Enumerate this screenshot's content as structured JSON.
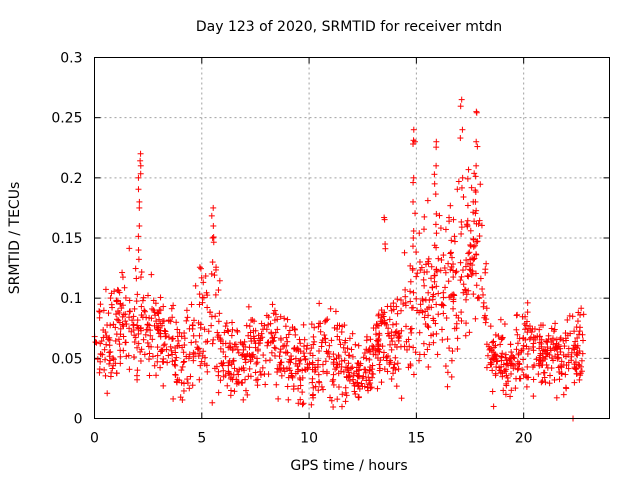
{
  "chart_data": {
    "type": "scatter",
    "title": "Day 123 of 2020, SRMTID for receiver mtdn",
    "xlabel": "GPS time / hours",
    "ylabel": "SRMTID / TECUs",
    "xlim": [
      0,
      24
    ],
    "ylim": [
      0,
      0.3
    ],
    "x_ticks": [
      "0",
      "5",
      "10",
      "15",
      "20"
    ],
    "y_ticks": [
      "0",
      "0.05",
      "0.1",
      "0.15",
      "0.2",
      "0.25",
      "0.3"
    ],
    "grid": true,
    "marker": "plus",
    "color": "#ff0000",
    "series": [
      {
        "name": "SRMTID",
        "profile_hours": [
          0,
          0.5,
          1,
          1.5,
          2,
          2.5,
          3,
          3.5,
          4,
          4.5,
          5,
          5.5,
          6,
          6.5,
          7,
          7.5,
          8,
          8.5,
          9,
          9.5,
          10,
          10.5,
          11,
          11.5,
          12,
          12.5,
          13,
          13.5,
          14,
          14.5,
          15,
          15.5,
          16,
          16.5,
          17,
          17.5,
          18,
          18.5,
          19,
          19.5,
          20,
          20.5,
          21,
          21.5,
          22,
          22.5,
          22.8
        ],
        "profile_center": [
          0.06,
          0.065,
          0.075,
          0.08,
          0.085,
          0.075,
          0.07,
          0.065,
          0.04,
          0.06,
          0.07,
          0.08,
          0.055,
          0.045,
          0.05,
          0.06,
          0.065,
          0.06,
          0.06,
          0.045,
          0.045,
          0.05,
          0.055,
          0.05,
          0.04,
          0.03,
          0.055,
          0.065,
          0.07,
          0.08,
          0.09,
          0.1,
          0.1,
          0.11,
          0.12,
          0.13,
          0.14,
          0.05,
          0.045,
          0.05,
          0.06,
          0.06,
          0.055,
          0.055,
          0.05,
          0.055,
          0.06
        ],
        "profile_spread": [
          0.025,
          0.03,
          0.03,
          0.03,
          0.035,
          0.025,
          0.025,
          0.025,
          0.02,
          0.03,
          0.035,
          0.04,
          0.025,
          0.02,
          0.025,
          0.025,
          0.025,
          0.025,
          0.03,
          0.02,
          0.03,
          0.03,
          0.03,
          0.025,
          0.02,
          0.015,
          0.025,
          0.025,
          0.03,
          0.035,
          0.045,
          0.05,
          0.05,
          0.05,
          0.05,
          0.05,
          0.05,
          0.02,
          0.02,
          0.02,
          0.025,
          0.02,
          0.02,
          0.02,
          0.02,
          0.02,
          0.02
        ],
        "bursts": [
          {
            "x": 2.1,
            "values": [
              0.14,
              0.16,
              0.18,
              0.2,
              0.21,
              0.22
            ]
          },
          {
            "x": 5.5,
            "values": [
              0.13,
              0.15,
              0.16,
              0.175
            ]
          },
          {
            "x": 13.5,
            "values": [
              0.145,
              0.167
            ]
          },
          {
            "x": 14.9,
            "values": [
              0.15,
              0.18,
              0.2,
              0.23,
              0.24
            ]
          },
          {
            "x": 15.9,
            "values": [
              0.17,
              0.195,
              0.21,
              0.23
            ]
          },
          {
            "x": 17.1,
            "values": [
              0.2,
              0.24,
              0.265
            ]
          },
          {
            "x": 17.8,
            "values": [
              0.18,
              0.21,
              0.23,
              0.255
            ]
          }
        ],
        "isolated_points": [
          {
            "x": 18.6,
            "y": 0.01
          },
          {
            "x": 22.3,
            "y": 0.0
          }
        ]
      }
    ]
  }
}
